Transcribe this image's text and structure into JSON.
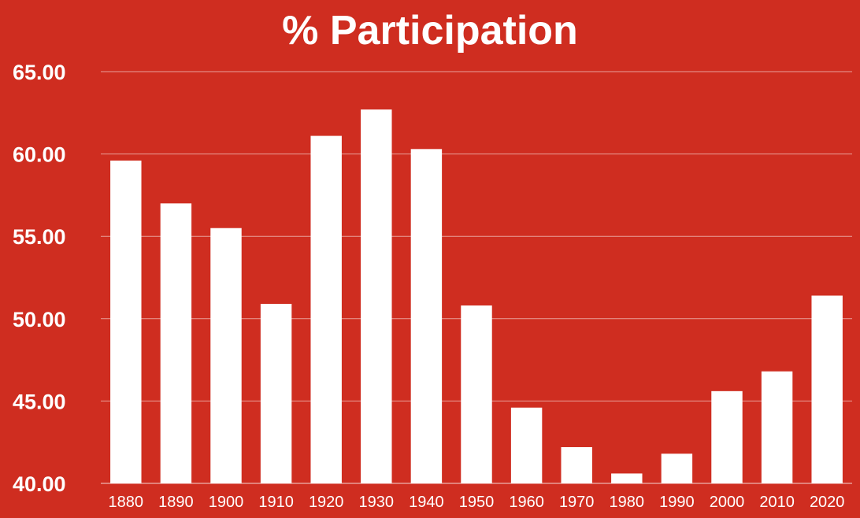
{
  "colors": {
    "background": "#cf2d20",
    "bar": "#ffffff",
    "text": "#ffffff"
  },
  "chart_data": {
    "type": "bar",
    "title": "% Participation",
    "xlabel": "",
    "ylabel": "",
    "ylim": [
      40,
      65
    ],
    "yticks": [
      "40.00",
      "45.00",
      "50.00",
      "55.00",
      "60.00",
      "65.00"
    ],
    "grid": true,
    "legend": "none",
    "categories": [
      "1880",
      "1890",
      "1900",
      "1910",
      "1920",
      "1930",
      "1940",
      "1950",
      "1960",
      "1970",
      "1980",
      "1990",
      "2000",
      "2010",
      "2020"
    ],
    "values": [
      59.6,
      57.0,
      55.5,
      50.9,
      61.1,
      62.7,
      60.3,
      50.8,
      44.6,
      42.2,
      40.6,
      41.8,
      45.6,
      46.8,
      51.4
    ]
  }
}
